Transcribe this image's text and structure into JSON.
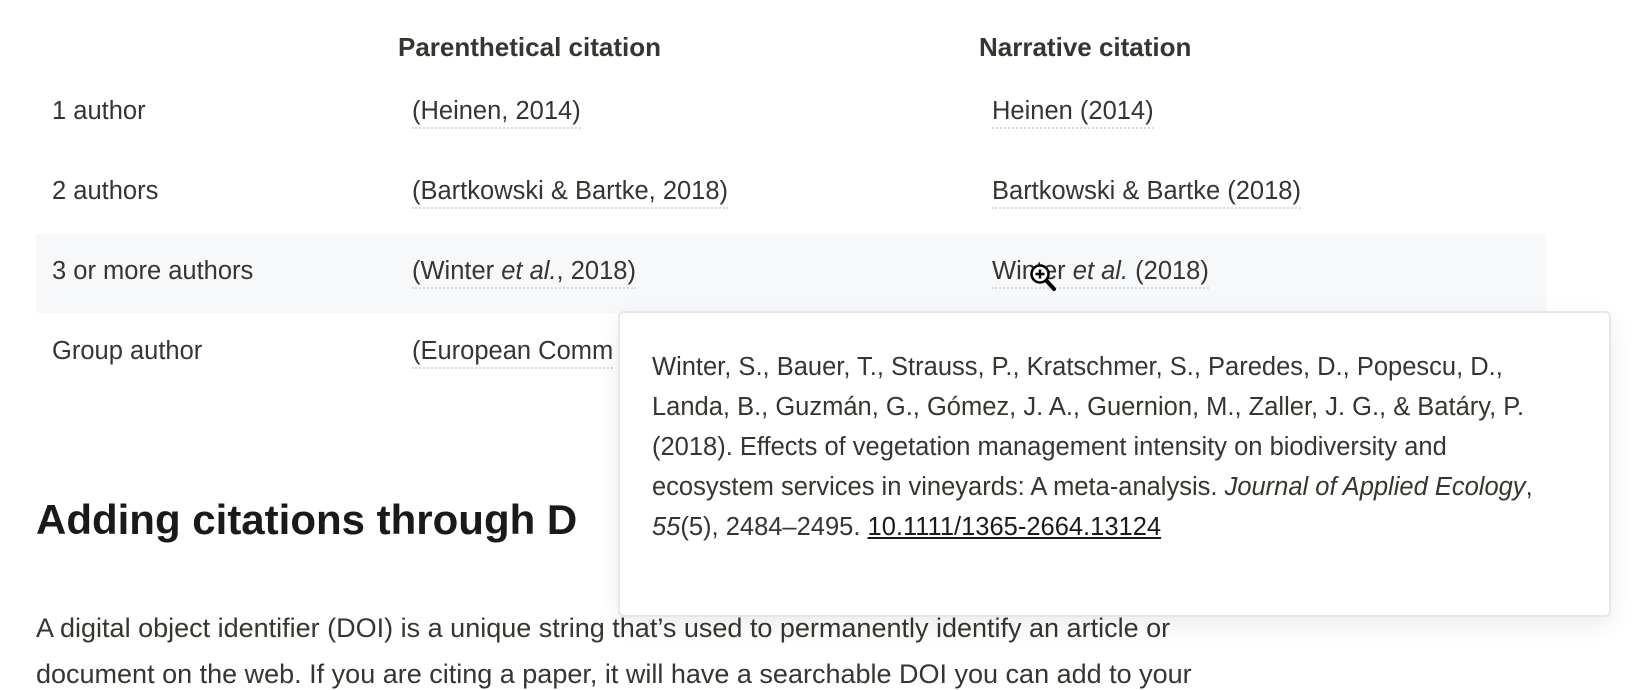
{
  "table": {
    "headers": [
      "",
      "Parenthetical citation",
      "Narrative citation"
    ],
    "rows": [
      {
        "label": "1 author",
        "parenthetical": "(Heinen, 2014)",
        "narrative": "Heinen (2014)"
      },
      {
        "label": "2 authors",
        "parenthetical": "(Bartkowski & Bartke, 2018)",
        "narrative": "Bartkowski & Bartke (2018)"
      },
      {
        "label": "3 or more authors",
        "parenthetical_pre": "(Winter ",
        "parenthetical_em": "et al.",
        "parenthetical_post": ", 2018)",
        "narrative_pre": "Winter ",
        "narrative_em": "et al.",
        "narrative_post": " (2018)"
      },
      {
        "label": "Group author",
        "parenthetical": "(European Comm"
      }
    ],
    "highlight_color": "#f7f8fa"
  },
  "heading": "Adding citations through D",
  "paragraph": {
    "line1": "A digital object identifier (DOI) is a unique string that’s used to permanently identify an article or",
    "line2": "document on the web. If you are citing a paper, it will have a searchable DOI you can add to your"
  },
  "popup": {
    "authors": "Winter, S., Bauer, T., Strauss, P., Kratschmer, S., Paredes, D., Popescu, D., Landa, B., Guzmán, G., Gómez, J. A., Guernion, M., Zaller, J. G., & Batáry, P. (2018). Effects of vegetation management intensity on biodiversity and ecosystem services in vineyards: A meta-analysis. ",
    "journal": "Journal of Applied Ecology",
    "sep": ", ",
    "volume": "55",
    "issue_pages": "(5), 2484–2495. ",
    "doi": "10.1111/1365-2664.13124"
  },
  "cursor": {
    "icon": "zoom-in-cursor-icon"
  }
}
